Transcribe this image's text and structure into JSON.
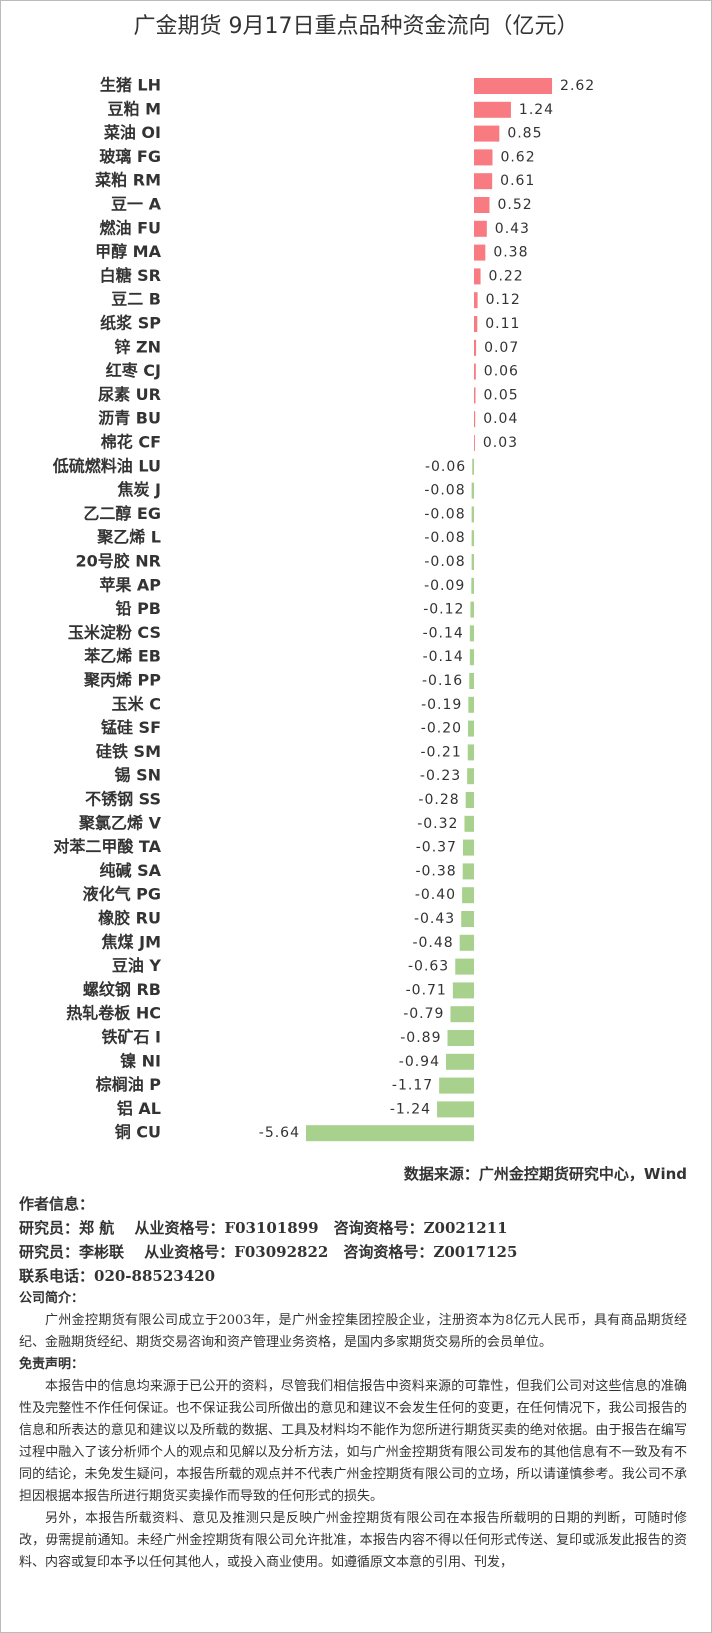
{
  "chart_data": {
    "type": "barh",
    "title": "广金期货 9月17日重点品种资金流向（亿元）",
    "categories": [
      "生猪 LH",
      "豆粕 M",
      "菜油 OI",
      "玻璃 FG",
      "菜粕 RM",
      "豆一 A",
      "燃油 FU",
      "甲醇 MA",
      "白糖 SR",
      "豆二 B",
      "纸浆 SP",
      "锌 ZN",
      "红枣 CJ",
      "尿素 UR",
      "沥青 BU",
      "棉花 CF",
      "低硫燃料油 LU",
      "焦炭 J",
      "乙二醇 EG",
      "聚乙烯 L",
      "20号胶 NR",
      "苹果 AP",
      "铅 PB",
      "玉米淀粉 CS",
      "苯乙烯 EB",
      "聚丙烯 PP",
      "玉米 C",
      "锰硅 SF",
      "硅铁 SM",
      "锡 SN",
      "不锈钢 SS",
      "聚氯乙烯 V",
      "对苯二甲酸 TA",
      "纯碱 SA",
      "液化气 PG",
      "橡胶 RU",
      "焦煤 JM",
      "豆油 Y",
      "螺纹钢 RB",
      "热轧卷板 HC",
      "铁矿石 I",
      "镍 NI",
      "棕榈油 P",
      "铝 AL",
      "铜 CU"
    ],
    "values": [
      2.62,
      1.24,
      0.85,
      0.62,
      0.61,
      0.52,
      0.43,
      0.38,
      0.22,
      0.12,
      0.11,
      0.07,
      0.06,
      0.05,
      0.04,
      0.03,
      -0.06,
      -0.08,
      -0.08,
      -0.08,
      -0.08,
      -0.09,
      -0.12,
      -0.14,
      -0.14,
      -0.16,
      -0.19,
      -0.2,
      -0.21,
      -0.23,
      -0.28,
      -0.32,
      -0.37,
      -0.38,
      -0.4,
      -0.43,
      -0.48,
      -0.63,
      -0.71,
      -0.79,
      -0.89,
      -0.94,
      -1.17,
      -1.24,
      -5.64
    ],
    "value_labels": [
      "2.62",
      "1.24",
      "0.85",
      "0.62",
      "0.61",
      "0.52",
      "0.43",
      "0.38",
      "0.22",
      "0.12",
      "0.11",
      "0.07",
      "0.06",
      "0.05",
      "0.04",
      "0.03",
      "-0.06",
      "-0.08",
      "-0.08",
      "-0.08",
      "-0.08",
      "-0.09",
      "-0.12",
      "-0.14",
      "-0.14",
      "-0.16",
      "-0.19",
      "-0.20",
      "-0.21",
      "-0.23",
      "-0.28",
      "-0.32",
      "-0.37",
      "-0.38",
      "-0.40",
      "-0.43",
      "-0.48",
      "-0.63",
      "-0.71",
      "-0.79",
      "-0.89",
      "-0.94",
      "-1.17",
      "-1.24",
      "-5.64"
    ],
    "positive_color": "#f77b80",
    "negative_color": "#a9d18e"
  },
  "footer": {
    "source": "数据来源：广州金控期货研究中心，Wind",
    "author_heading": "作者信息：",
    "researchers": [
      "研究员：郑 航　 从业资格号：F03101899　咨询资格号：Z0021211",
      "研究员：李彬联　 从业资格号：F03092822　咨询资格号：Z0017125"
    ],
    "phone": "联系电话：020-88523420",
    "intro_heading": "公司简介：",
    "intro": "广州金控期货有限公司成立于2003年，是广州金控集团控股企业，注册资本为8亿元人民币，具有商品期货经纪、金融期货经纪、期货交易咨询和资产管理业务资格，是国内多家期货交易所的会员单位。",
    "disclaimer_heading": "免责声明：",
    "disclaimer": [
      "本报告中的信息均来源于已公开的资料，尽管我们相信报告中资料来源的可靠性，但我们公司对这些信息的准确性及完整性不作任何保证。也不保证我公司所做出的意见和建议不会发生任何的变更，在任何情况下，我公司报告的信息和所表达的意见和建议以及所载的数据、工具及材料均不能作为您所进行期货买卖的绝对依据。由于报告在编写过程中融入了该分析师个人的观点和见解以及分析方法，如与广州金控期货有限公司发布的其他信息有不一致及有不同的结论，未免发生疑问，本报告所载的观点并不代表广州金控期货有限公司的立场，所以请谨慎参考。我公司不承担因根据本报告所进行期货买卖操作而导致的任何形式的损失。",
      "另外，本报告所载资料、意见及推测只是反映广州金控期货有限公司在本报告所载明的日期的判断，可随时修改，毋需提前通知。未经广州金控期货有限公司允许批准，本报告内容不得以任何形式传送、复印或派发此报告的资料、内容或复印本予以任何其他人，或投入商业使用。如遵循原文本意的引用、刊发，"
    ]
  }
}
